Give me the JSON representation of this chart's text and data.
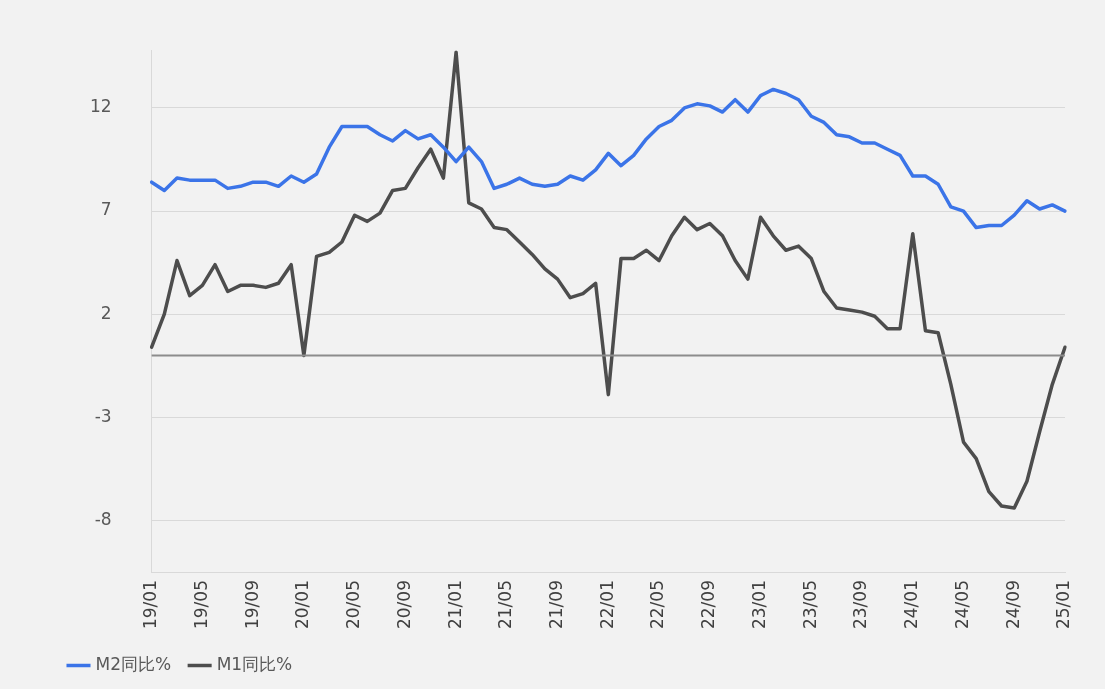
{
  "chart_data": {
    "type": "line",
    "categories": [
      "19/01",
      null,
      null,
      null,
      "19/05",
      null,
      null,
      null,
      "19/09",
      null,
      null,
      null,
      "20/01",
      null,
      null,
      null,
      "20/05",
      null,
      null,
      null,
      "20/09",
      null,
      null,
      null,
      "21/01",
      null,
      null,
      null,
      "21/05",
      null,
      null,
      null,
      "21/09",
      null,
      null,
      null,
      "22/01",
      null,
      null,
      null,
      "22/05",
      null,
      null,
      null,
      "22/09",
      null,
      null,
      null,
      "23/01",
      null,
      null,
      null,
      "23/05",
      null,
      null,
      null,
      "23/09",
      null,
      null,
      null,
      "24/01",
      null,
      null,
      null,
      "24/05",
      null,
      null,
      null,
      "24/09",
      null,
      null,
      null,
      "25/01"
    ],
    "series": [
      {
        "name": "M2同比%",
        "color": "#3b74e8",
        "values": [
          8.4,
          8.0,
          8.6,
          8.5,
          8.5,
          8.5,
          8.1,
          8.2,
          8.4,
          8.4,
          8.2,
          8.7,
          8.4,
          8.8,
          10.1,
          11.1,
          11.1,
          11.1,
          10.7,
          10.4,
          10.9,
          10.5,
          10.7,
          10.1,
          9.4,
          10.1,
          9.4,
          8.1,
          8.3,
          8.6,
          8.3,
          8.2,
          8.3,
          8.7,
          8.5,
          9.0,
          9.8,
          9.2,
          9.7,
          10.5,
          11.1,
          11.4,
          12.0,
          12.2,
          12.1,
          11.8,
          12.4,
          11.8,
          12.6,
          12.9,
          12.7,
          12.4,
          11.6,
          11.3,
          10.7,
          10.6,
          10.3,
          10.3,
          10.0,
          9.7,
          8.7,
          8.7,
          8.3,
          7.2,
          7.0,
          6.2,
          6.3,
          6.3,
          6.8,
          7.5,
          7.1,
          7.3,
          7.0
        ]
      },
      {
        "name": "M1同比%",
        "color": "#4d4d4d",
        "values": [
          0.4,
          2.0,
          4.6,
          2.9,
          3.4,
          4.4,
          3.1,
          3.4,
          3.4,
          3.3,
          3.5,
          4.4,
          0.0,
          4.8,
          5.0,
          5.5,
          6.8,
          6.5,
          6.9,
          8.0,
          8.1,
          9.1,
          10.0,
          8.6,
          14.7,
          7.4,
          7.1,
          6.2,
          6.1,
          5.5,
          4.9,
          4.2,
          3.7,
          2.8,
          3.0,
          3.5,
          -1.9,
          4.7,
          4.7,
          5.1,
          4.6,
          5.8,
          6.7,
          6.1,
          6.4,
          5.8,
          4.6,
          3.7,
          6.7,
          5.8,
          5.1,
          5.3,
          4.7,
          3.1,
          2.3,
          2.2,
          2.1,
          1.9,
          1.3,
          1.3,
          5.9,
          1.2,
          1.1,
          -1.4,
          -4.2,
          -5.0,
          -6.6,
          -7.3,
          -7.4,
          -6.1,
          -3.7,
          -1.4,
          0.4
        ]
      }
    ],
    "ylim": [
      -10.5,
      14.8
    ],
    "yticks": [
      -8,
      -3,
      2,
      7,
      12
    ],
    "ref_lines": [
      {
        "axis": "y",
        "value": 0,
        "color": "#8c8c8c"
      }
    ],
    "grid": "y",
    "legend": "bottom left",
    "marker": "none",
    "line_style": "solid"
  }
}
